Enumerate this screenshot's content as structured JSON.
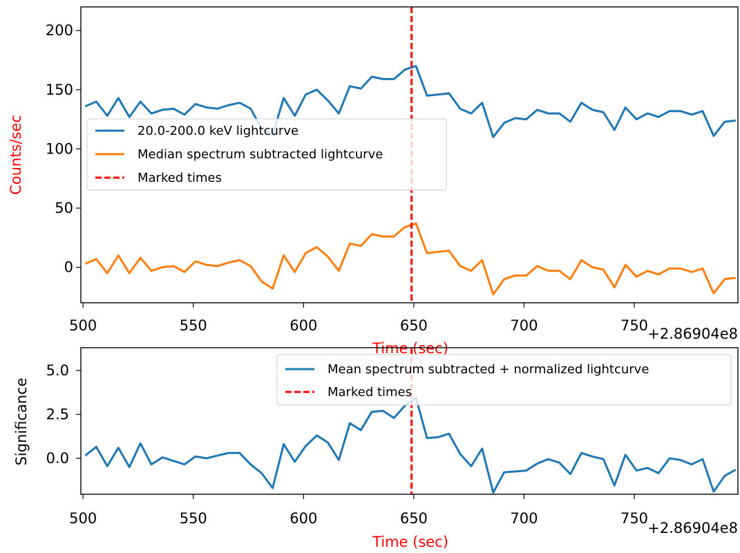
{
  "chart_data": [
    {
      "type": "line",
      "xlabel": "Time (sec)",
      "ylabel": "Counts/sec",
      "axis_label_color": "#ff0000",
      "x_offset_label": "+2.86904e8",
      "xlim": [
        499,
        797
      ],
      "ylim": [
        -30,
        220
      ],
      "xticks": [
        500,
        550,
        600,
        650,
        700,
        750
      ],
      "yticks": [
        0,
        50,
        100,
        150,
        200
      ],
      "grid": false,
      "legend_position": "center-left",
      "x": [
        501,
        506,
        511,
        516,
        521,
        526,
        531,
        536,
        541,
        546,
        551,
        556,
        561,
        566,
        571,
        576,
        581,
        586,
        591,
        596,
        601,
        606,
        611,
        616,
        621,
        626,
        631,
        636,
        641,
        646,
        651,
        656,
        661,
        666,
        671,
        676,
        681,
        686,
        691,
        696,
        701,
        706,
        711,
        716,
        721,
        726,
        731,
        736,
        741,
        746,
        751,
        756,
        761,
        766,
        771,
        776,
        781,
        786,
        791,
        796
      ],
      "series": [
        {
          "name": "20.0-200.0 keV lightcurve",
          "color": "#1f77b4",
          "style": "solid",
          "values": [
            136,
            140,
            128,
            143,
            127,
            140,
            130,
            133,
            134,
            129,
            138,
            135,
            134,
            137,
            139,
            134,
            117,
            112,
            143,
            128,
            146,
            150,
            141,
            130,
            153,
            151,
            161,
            159,
            159,
            167,
            170,
            145,
            146,
            147,
            134,
            130,
            139,
            110,
            122,
            126,
            125,
            133,
            130,
            130,
            123,
            139,
            133,
            131,
            116,
            135,
            125,
            130,
            127,
            132,
            132,
            129,
            132,
            111,
            123,
            124
          ]
        },
        {
          "name": "Median spectrum subtracted lightcurve",
          "color": "#ff7f0e",
          "style": "solid",
          "values": [
            3,
            7,
            -5,
            10,
            -5,
            8,
            -3,
            0,
            1,
            -4,
            5,
            2,
            1,
            4,
            6,
            1,
            -12,
            -18,
            10,
            -4,
            12,
            17,
            9,
            -3,
            20,
            18,
            28,
            26,
            26,
            34,
            37,
            12,
            13,
            14,
            1,
            -3,
            6,
            -23,
            -10,
            -7,
            -7,
            1,
            -3,
            -3,
            -10,
            6,
            0,
            -2,
            -17,
            2,
            -8,
            -3,
            -6,
            -1,
            -1,
            -4,
            -1,
            -22,
            -10,
            -9
          ]
        }
      ],
      "vlines": [
        {
          "name": "Marked times",
          "x": 649,
          "color": "#ff0000",
          "style": "dashed"
        }
      ]
    },
    {
      "type": "line",
      "xlabel": "Time (sec)",
      "ylabel": "Significance",
      "xlabel_color": "#ff0000",
      "ylabel_color": "#000000",
      "x_offset_label": "+2.86904e8",
      "xlim": [
        499,
        797
      ],
      "ylim": [
        -2.05,
        6.3
      ],
      "xticks": [
        500,
        550,
        600,
        650,
        700,
        750
      ],
      "yticks": [
        0.0,
        2.5,
        5.0
      ],
      "ytick_labels": [
        "0.0",
        "2.5",
        "5.0"
      ],
      "grid": false,
      "legend_position": "upper-right",
      "x": [
        501,
        506,
        511,
        516,
        521,
        526,
        531,
        536,
        541,
        546,
        551,
        556,
        561,
        566,
        571,
        576,
        581,
        586,
        591,
        596,
        601,
        606,
        611,
        616,
        621,
        626,
        631,
        636,
        641,
        646,
        651,
        656,
        661,
        666,
        671,
        676,
        681,
        686,
        691,
        696,
        701,
        706,
        711,
        716,
        721,
        726,
        731,
        736,
        741,
        746,
        751,
        756,
        761,
        766,
        771,
        776,
        781,
        786,
        791,
        796
      ],
      "series": [
        {
          "name": "Mean spectrum subtracted + normalized lightcurve",
          "color": "#1f77b4",
          "style": "solid",
          "values": [
            0.15,
            0.65,
            -0.45,
            0.6,
            -0.5,
            0.85,
            -0.35,
            0.05,
            -0.15,
            -0.35,
            0.1,
            0.0,
            0.15,
            0.3,
            0.3,
            -0.35,
            -0.85,
            -1.7,
            0.8,
            -0.2,
            0.7,
            1.3,
            0.9,
            -0.1,
            2.0,
            1.6,
            2.65,
            2.7,
            2.3,
            3.0,
            3.45,
            1.15,
            1.2,
            1.4,
            0.25,
            -0.45,
            0.55,
            -1.95,
            -0.8,
            -0.75,
            -0.7,
            -0.3,
            -0.05,
            -0.25,
            -0.9,
            0.3,
            0.1,
            -0.05,
            -1.55,
            0.2,
            -0.7,
            -0.55,
            -0.85,
            0.0,
            -0.1,
            -0.35,
            -0.05,
            -1.9,
            -1.0,
            -0.65
          ]
        }
      ],
      "vlines": [
        {
          "name": "Marked times",
          "x": 649,
          "color": "#ff0000",
          "style": "dashed"
        }
      ]
    }
  ]
}
